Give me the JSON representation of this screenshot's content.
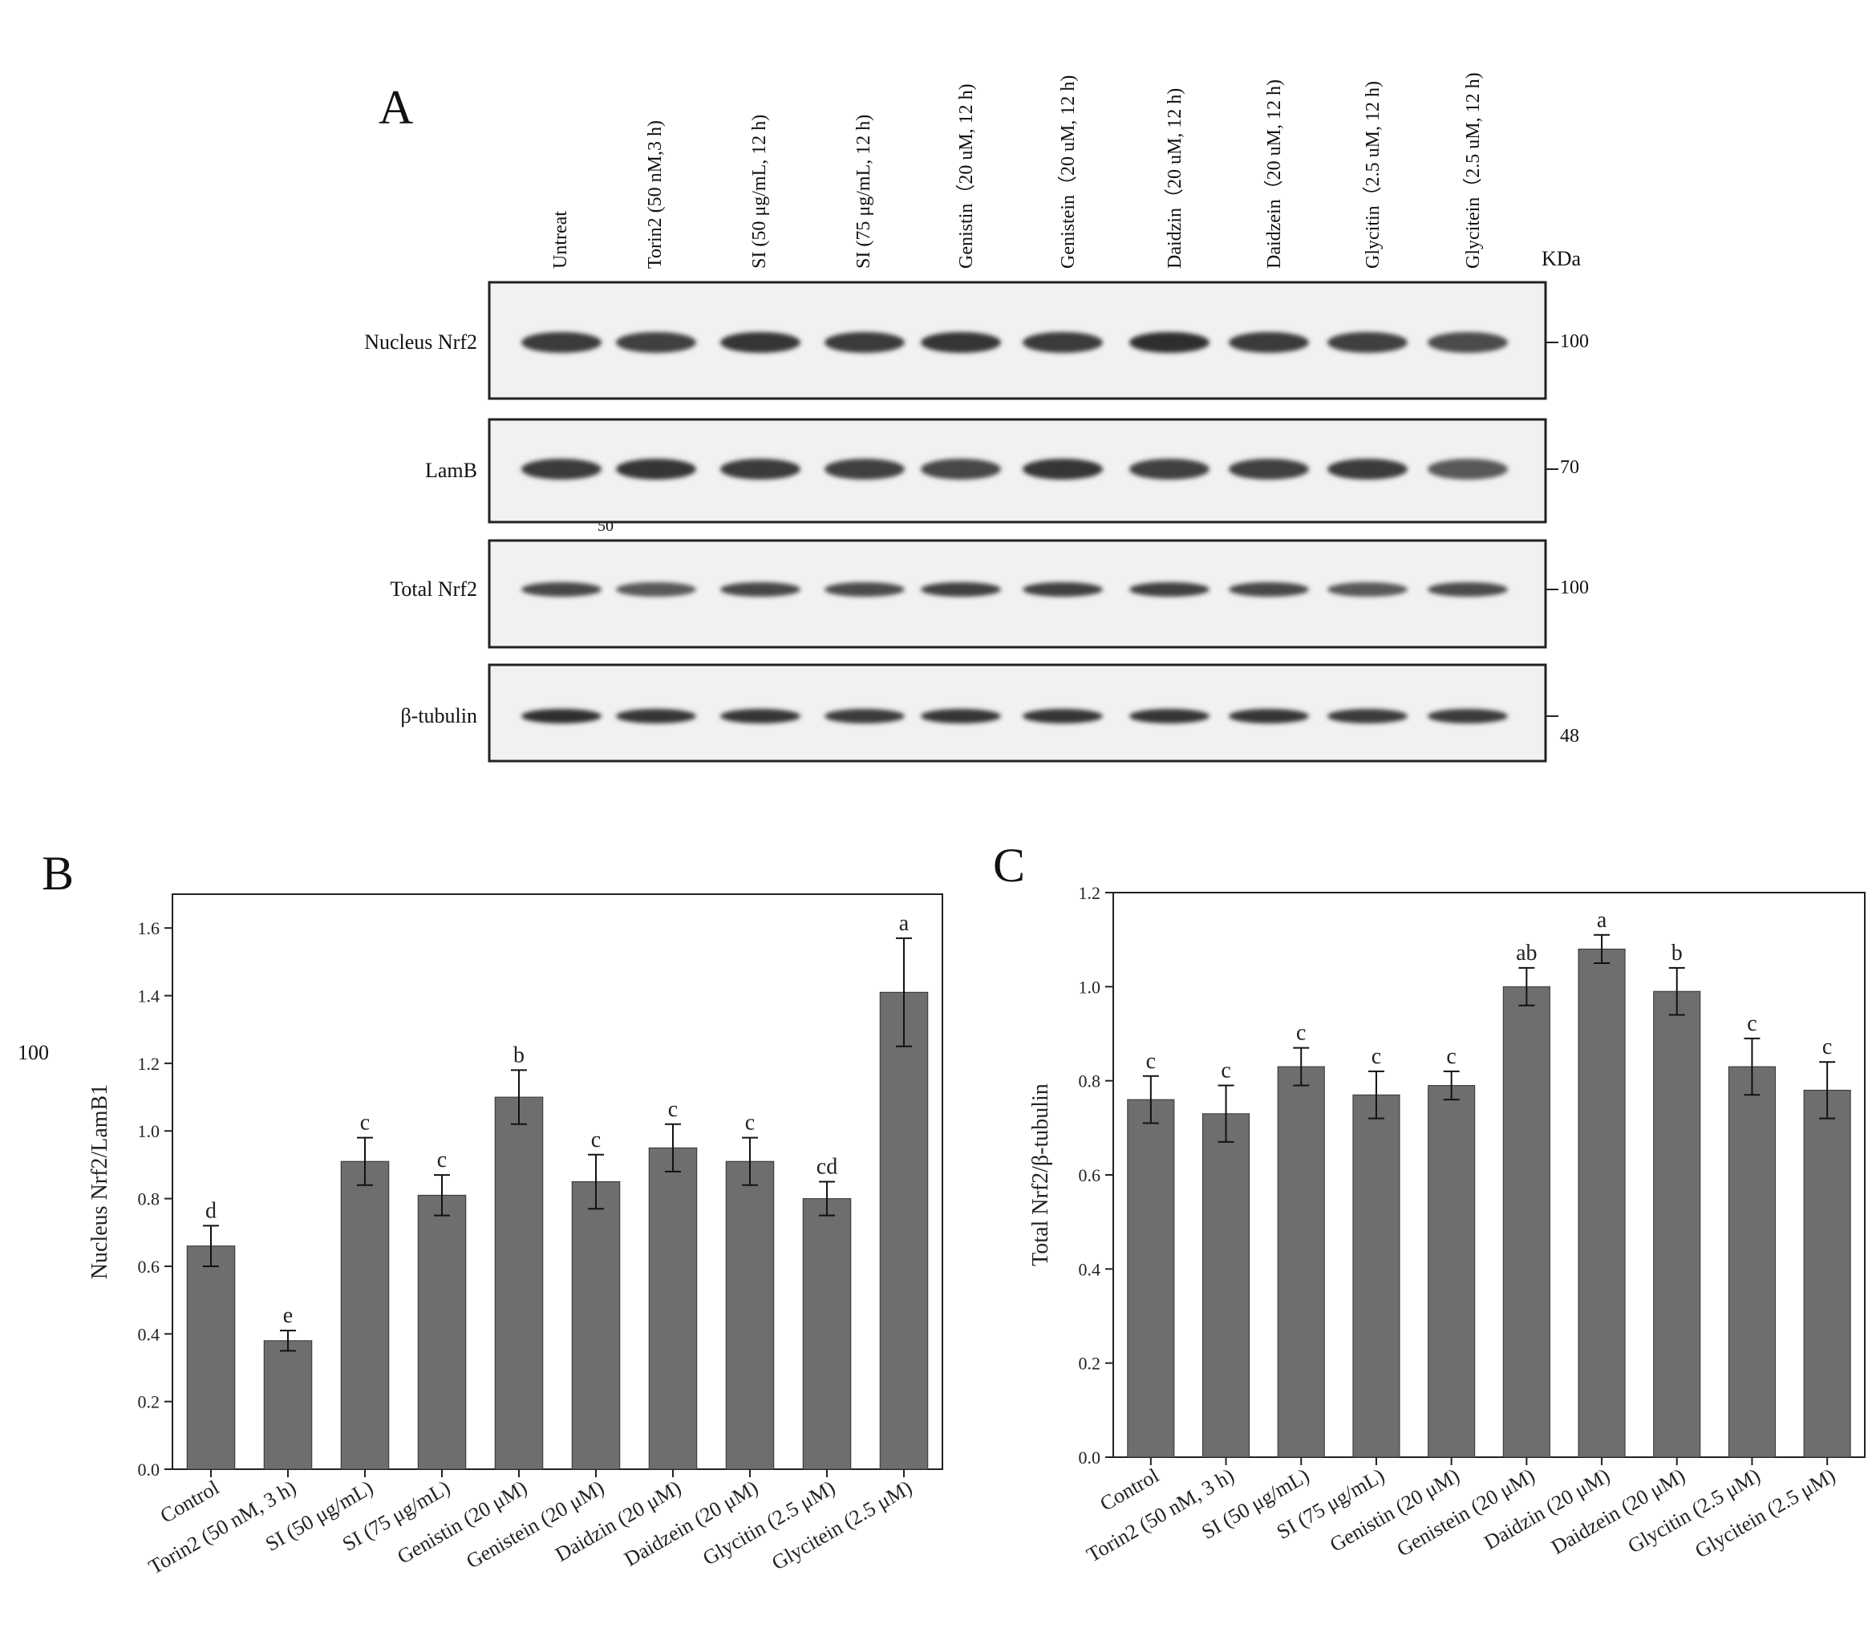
{
  "panels": {
    "a": "A",
    "b": "B",
    "c": "C"
  },
  "blot": {
    "lanes": [
      "Untreat",
      "Torin2 (50 nM,3 h)",
      "SI (50 μg/mL, 12 h)",
      "SI (75 μg/mL, 12 h)",
      "Genistin（20 uM, 12 h)",
      "Genistein（20 uM, 12 h)",
      "Daidzin（20 uM, 12 h)",
      "Daidzein（20 uM, 12 h)",
      "Glycitin（2.5 uM, 12 h)",
      "Glycitein（2.5 uM, 12 h)"
    ],
    "kda_label": "KDa",
    "rows": [
      {
        "label": "Nucleus Nrf2",
        "marker": "100"
      },
      {
        "label": "LamB",
        "marker": "70"
      },
      {
        "label": "Total Nrf2",
        "marker": "100"
      },
      {
        "label": "β-tubulin",
        "marker": "48"
      }
    ],
    "stray_label": "50",
    "stray_left": "100"
  },
  "chart_data": [
    {
      "type": "bar",
      "panel": "B",
      "categories": [
        "Control",
        "Torin2 (50 nM, 3 h)",
        "SI (50 μg/mL)",
        "SI (75 μg/mL)",
        "Genistin (20 μM)",
        "Genistein (20 μM)",
        "Daidzin (20 μM)",
        "Daidzein (20 μM)",
        "Glycitin (2.5 μM)",
        "Glycitein (2.5 μM)"
      ],
      "values": [
        0.66,
        0.38,
        0.91,
        0.81,
        1.1,
        0.85,
        0.95,
        0.91,
        0.8,
        1.41
      ],
      "errors": [
        0.06,
        0.03,
        0.07,
        0.06,
        0.08,
        0.08,
        0.07,
        0.07,
        0.05,
        0.16
      ],
      "letters": [
        "d",
        "e",
        "c",
        "c",
        "b",
        "c",
        "c",
        "c",
        "cd",
        "a"
      ],
      "ylabel": "Nucleus Nrf2/LamB1",
      "ylim": [
        0,
        1.7
      ],
      "yticks": [
        0.0,
        0.2,
        0.4,
        0.6,
        0.8,
        1.0,
        1.2,
        1.4,
        1.6
      ],
      "bar_color": "#6e6e6e"
    },
    {
      "type": "bar",
      "panel": "C",
      "categories": [
        "Control",
        "Torin2 (50 nM, 3 h)",
        "SI (50 μg/mL)",
        "SI (75 μg/mL)",
        "Genistin (20 μM)",
        "Genistein (20 μM)",
        "Daidzin (20 μM)",
        "Daidzein (20 μM)",
        "Glycitin (2.5 μM)",
        "Glycitein (2.5 μM)"
      ],
      "values": [
        0.76,
        0.73,
        0.83,
        0.77,
        0.79,
        1.0,
        1.08,
        0.99,
        0.83,
        0.78
      ],
      "errors": [
        0.05,
        0.06,
        0.04,
        0.05,
        0.03,
        0.04,
        0.03,
        0.05,
        0.06,
        0.06
      ],
      "letters": [
        "c",
        "c",
        "c",
        "c",
        "c",
        "ab",
        "a",
        "b",
        "c",
        "c"
      ],
      "ylabel": "Total Nrf2/β-tubulin",
      "ylim": [
        0,
        1.2
      ],
      "yticks": [
        0.0,
        0.2,
        0.4,
        0.6,
        0.8,
        1.0,
        1.2
      ],
      "bar_color": "#6e6e6e"
    }
  ]
}
